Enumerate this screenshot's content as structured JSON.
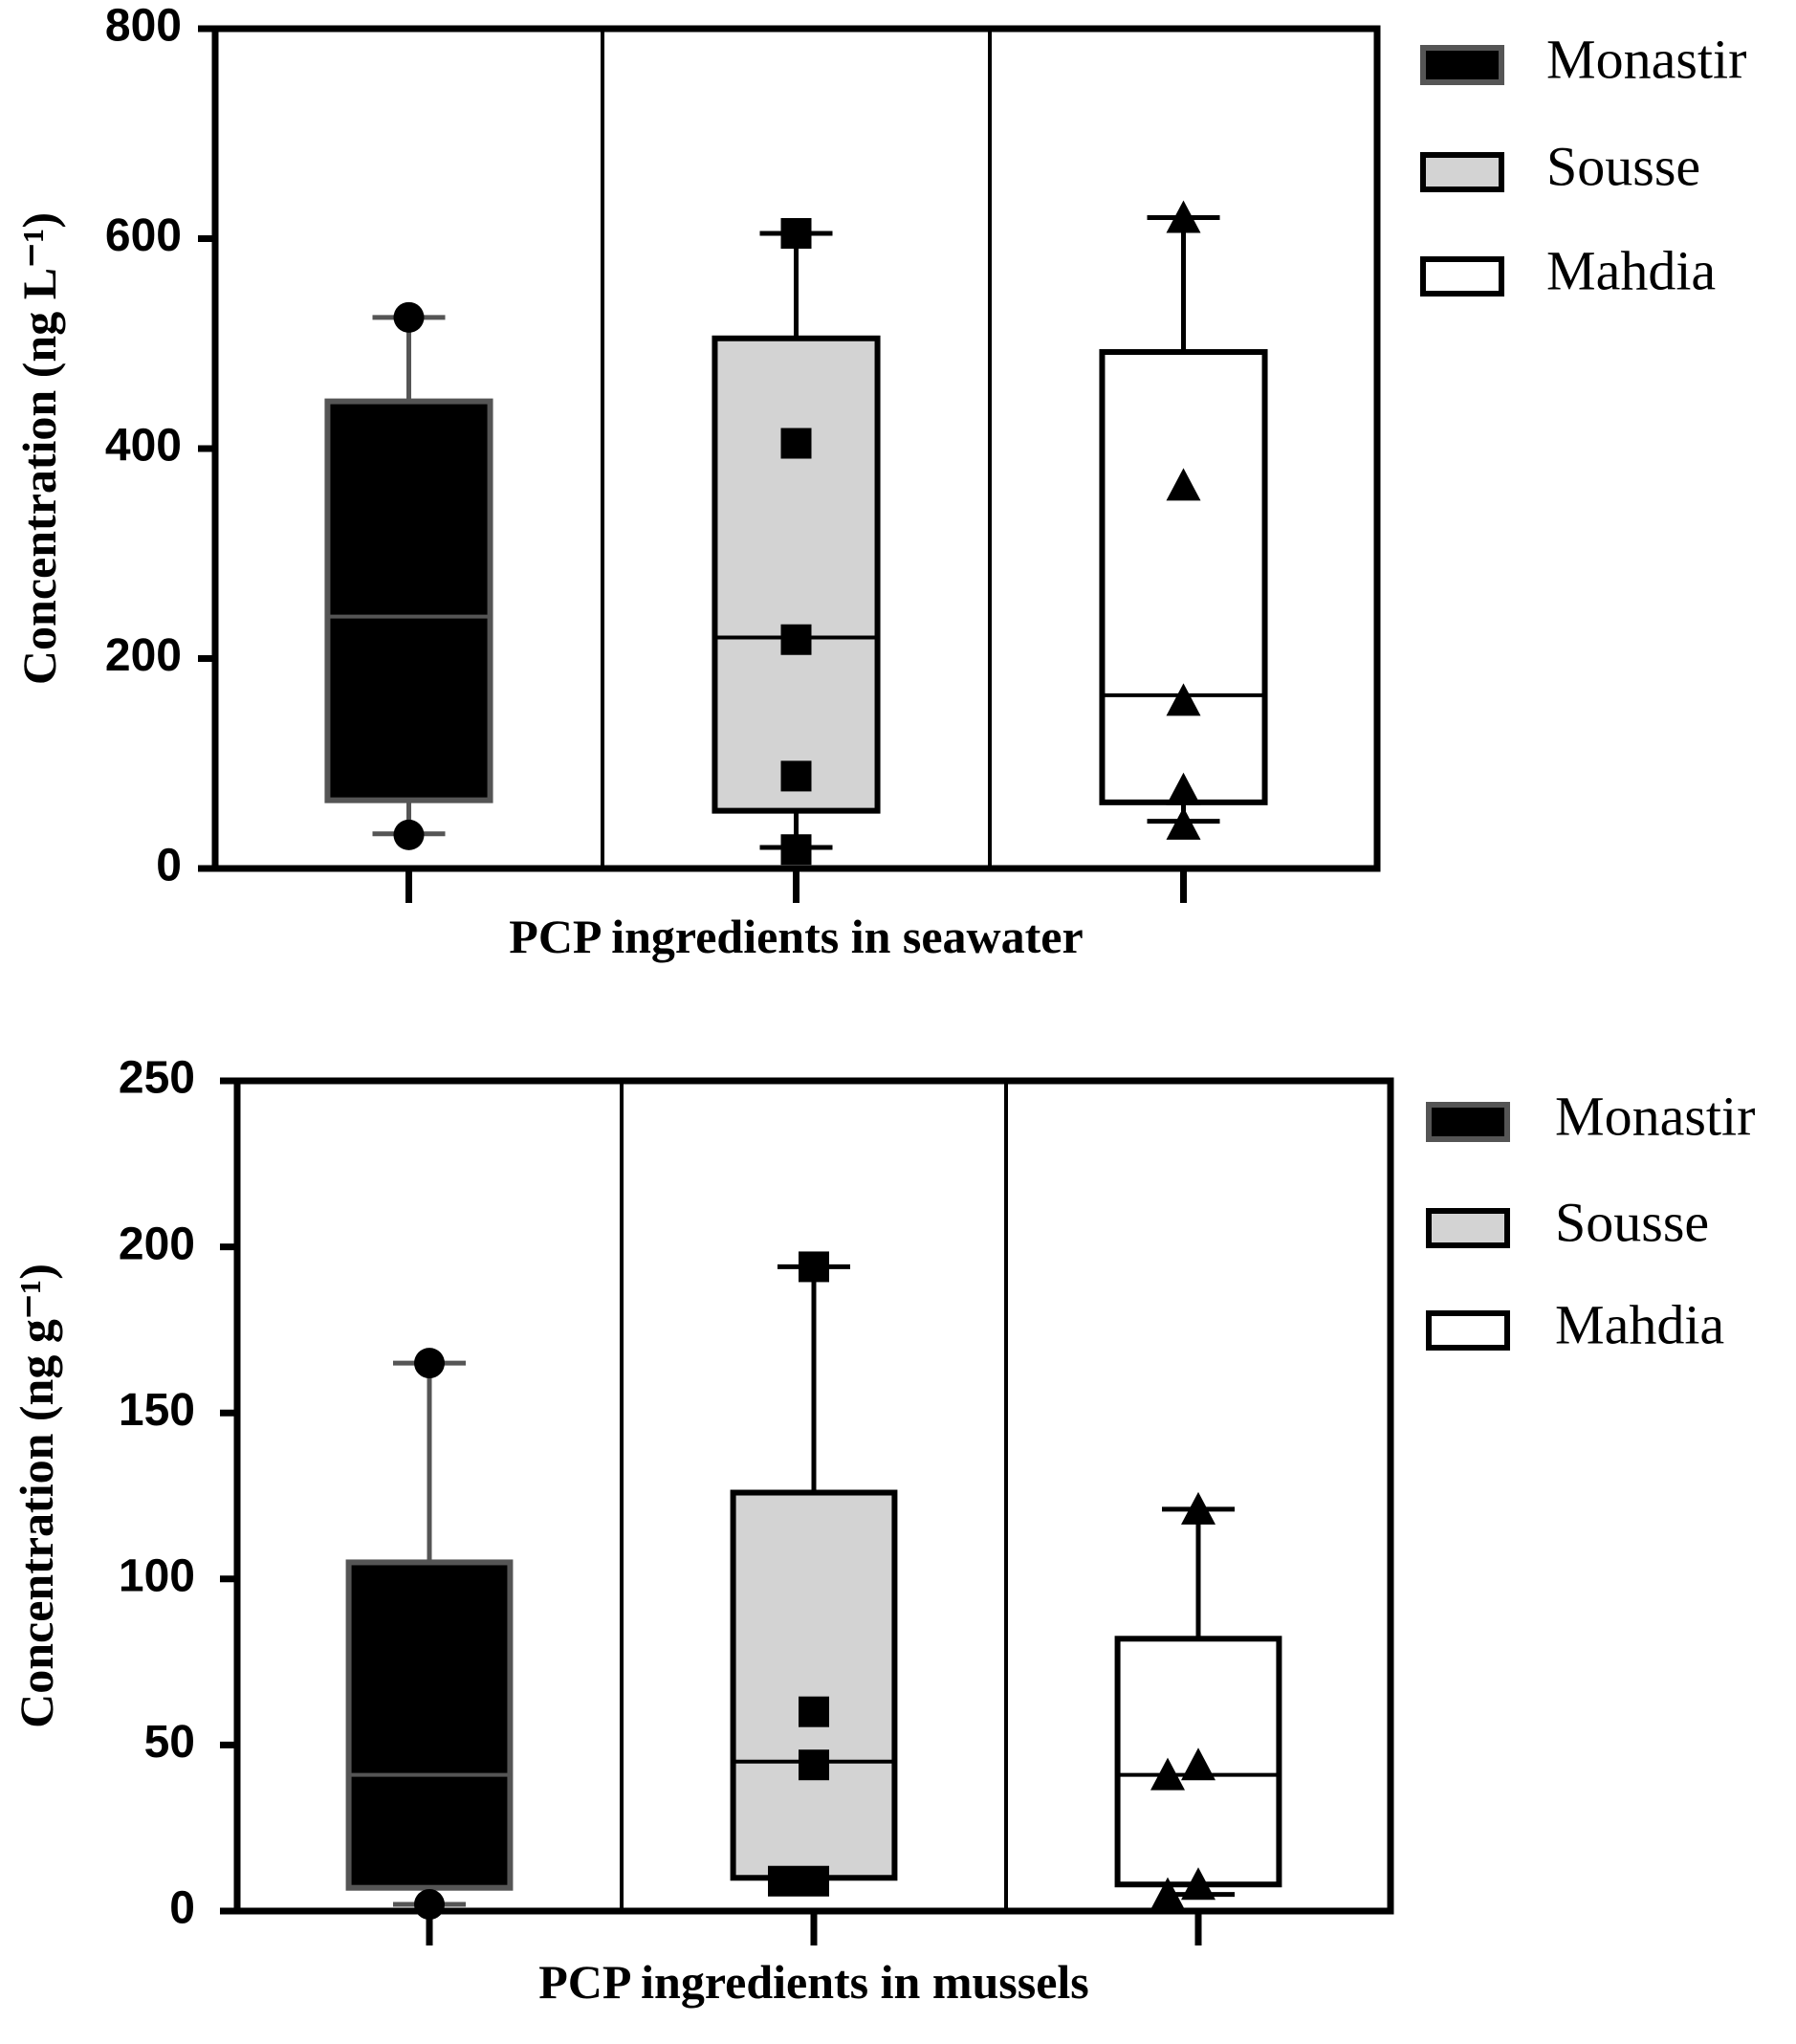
{
  "chart_data": [
    {
      "type": "box",
      "x_label": "PCP ingredients in seawater",
      "y_label": "Concentration (ng L⁻¹)",
      "ylim": [
        0,
        800
      ],
      "yticks": [
        0,
        200,
        400,
        600,
        800
      ],
      "series": [
        {
          "name": "Monastir",
          "color": "#000000",
          "edge_color": "#555555",
          "marker": "circle",
          "stats": {
            "min": 33,
            "q1": 65,
            "median": 240,
            "q3": 445,
            "max": 525
          },
          "points": [
            525,
            32
          ]
        },
        {
          "name": "Sousse",
          "color": "#d3d3d3",
          "edge_color": "#000000",
          "marker": "square",
          "stats": {
            "min": 20,
            "q1": 55,
            "median": 220,
            "q3": 505,
            "max": 605
          },
          "points": [
            605,
            405,
            218,
            88,
            18
          ]
        },
        {
          "name": "Mahdia",
          "color": "#ffffff",
          "edge_color": "#000000",
          "marker": "triangle",
          "stats": {
            "min": 45,
            "q1": 63,
            "median": 165,
            "q3": 492,
            "max": 620
          },
          "points": [
            620,
            365,
            160,
            75,
            42
          ]
        }
      ]
    },
    {
      "type": "box",
      "x_label": "PCP ingredients in mussels",
      "y_label": "Concentration (ng g⁻¹)",
      "ylim": [
        0,
        250
      ],
      "yticks": [
        0,
        50,
        100,
        150,
        200,
        250
      ],
      "series": [
        {
          "name": "Monastir",
          "color": "#000000",
          "edge_color": "#555555",
          "marker": "circle",
          "stats": {
            "min": 2,
            "q1": 7,
            "median": 41,
            "q3": 105,
            "max": 165
          },
          "points": [
            165,
            2
          ]
        },
        {
          "name": "Sousse",
          "color": "#d3d3d3",
          "edge_color": "#000000",
          "marker": "square",
          "stats": {
            "min": 10,
            "q1": 10,
            "median": 45,
            "q3": 126,
            "max": 194
          },
          "points": [
            194,
            60,
            44,
            9,
            9
          ]
        },
        {
          "name": "Mahdia",
          "color": "#ffffff",
          "edge_color": "#000000",
          "marker": "triangle",
          "stats": {
            "min": 5,
            "q1": 8,
            "median": 41,
            "q3": 82,
            "max": 121
          },
          "points": [
            121,
            44,
            41,
            8,
            5
          ]
        }
      ]
    }
  ]
}
